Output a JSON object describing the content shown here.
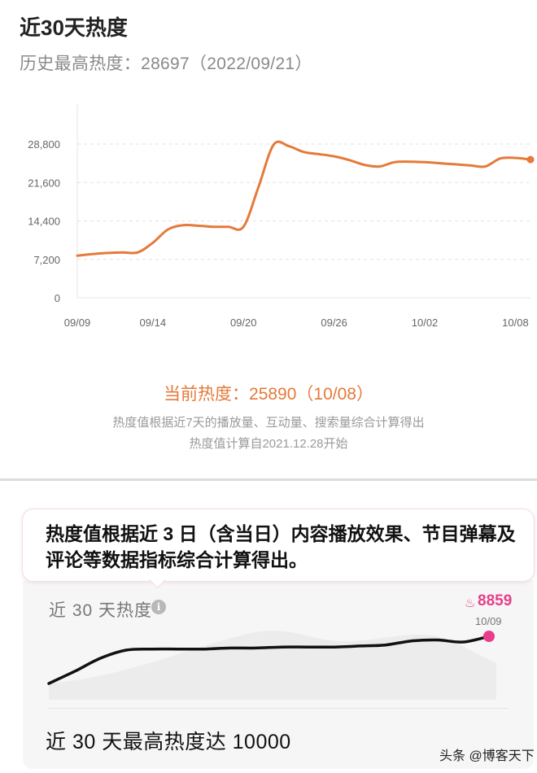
{
  "top_card": {
    "title": "近30天热度",
    "history_max": "历史最高热度：28697（2022/09/21）",
    "current": "当前热度：25890（10/08）",
    "note1": "热度值根据近7天的播放量、互动量、搜索量综合计算得出",
    "note2": "热度值计算自2021.12.28开始",
    "line_color": "#e57a3a"
  },
  "bottom_card": {
    "tooltip": "热度值根据近 3 日（含当日）内容播放效果、节目弹幕及评论等数据指标综合计算得出。",
    "title": "近 30 天热度",
    "info_icon": "i",
    "flame_icon": "flame-icon",
    "flame_glyph": "♨",
    "badge": "8859",
    "badge_date": "10/09",
    "max_text": "近 30 天最高热度达 10000",
    "accent": "#e83e8c"
  },
  "watermark": "头条 @博客天下",
  "chart_data": [
    {
      "type": "line",
      "title": "近30天热度",
      "xlabel": "",
      "ylabel": "",
      "y_ticks": [
        "0",
        "7,200",
        "14,400",
        "21,600",
        "28,800"
      ],
      "ylim": [
        0,
        28800
      ],
      "x_ticks": [
        "09/09",
        "09/14",
        "09/20",
        "09/26",
        "10/02",
        "10/08"
      ],
      "grid": true,
      "series": [
        {
          "x": [
            0,
            1,
            2,
            3,
            4,
            5,
            6,
            7,
            8,
            9,
            10,
            11,
            12,
            13,
            14,
            15,
            16,
            17,
            18,
            19,
            20,
            21,
            22,
            23,
            24,
            25,
            26,
            27,
            28,
            29,
            30
          ],
          "values": [
            7900,
            8200,
            8400,
            8500,
            8500,
            10300,
            12800,
            13600,
            13500,
            13300,
            13300,
            13300,
            20800,
            28700,
            28400,
            27300,
            26900,
            26500,
            25800,
            24900,
            24600,
            25400,
            25500,
            25400,
            25200,
            25000,
            24800,
            24600,
            26100,
            26200,
            25890
          ]
        }
      ]
    },
    {
      "type": "line",
      "title": "近 30 天热度",
      "ylim": [
        0,
        10000
      ],
      "grid": false,
      "series": [
        {
          "values": [
            4200,
            5400,
            6700,
            7500,
            7600,
            7600,
            7600,
            7700,
            7700,
            7800,
            7800,
            7800,
            7900,
            8000,
            8400,
            8500,
            8300,
            8859
          ]
        }
      ]
    }
  ]
}
